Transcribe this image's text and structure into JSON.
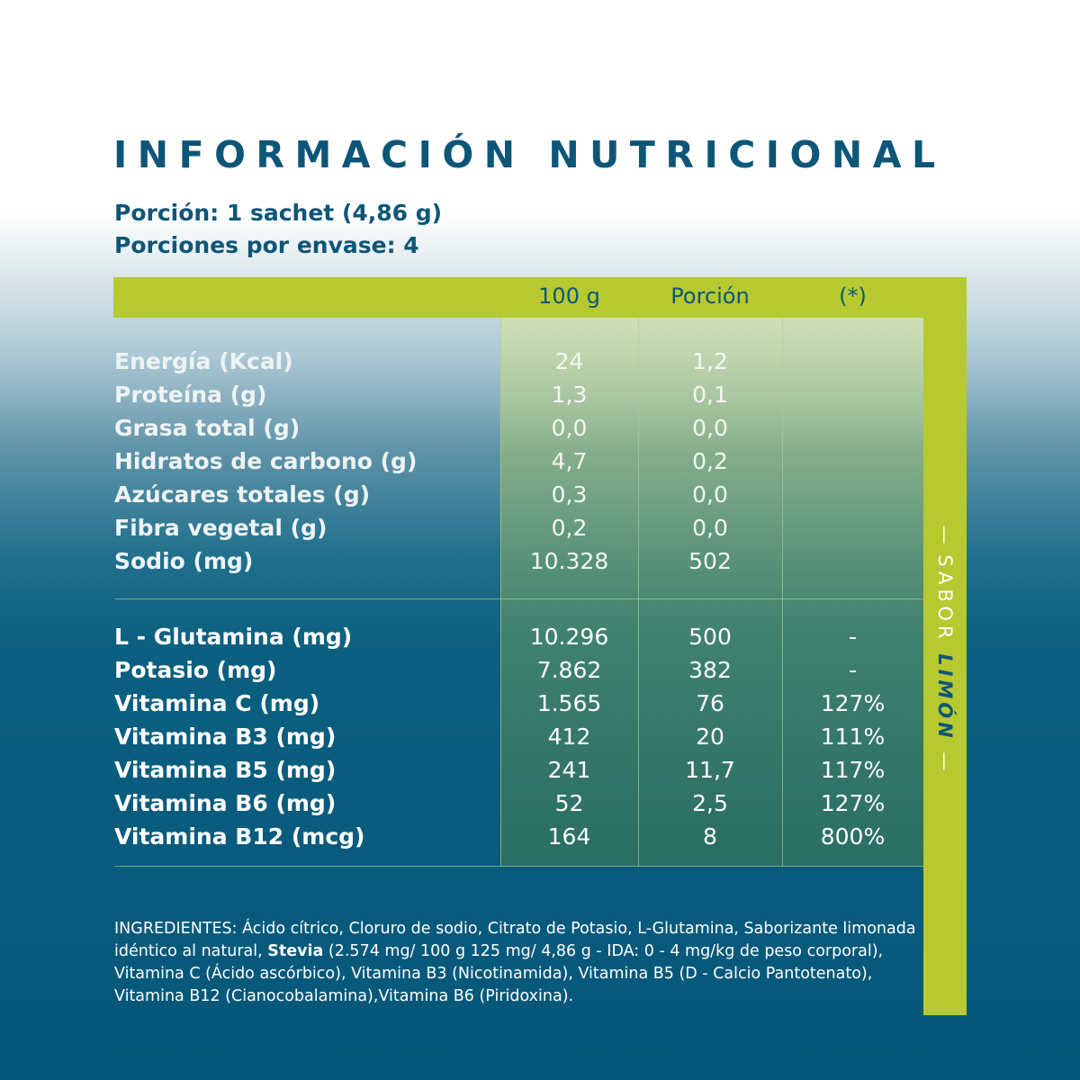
{
  "title": "INFORMACIÓN NUTRICIONAL",
  "serving": {
    "portion": "Porción: 1 sachet (4,86 g)",
    "servings_per_container": "Porciones por envase: 4"
  },
  "table": {
    "headers": [
      "100 g",
      "Porción",
      "(*)"
    ],
    "section1": [
      {
        "label": "Energía (Kcal)",
        "per100": "24",
        "portion": "1,2",
        "pct": ""
      },
      {
        "label": "Proteína (g)",
        "per100": "1,3",
        "portion": "0,1",
        "pct": ""
      },
      {
        "label": "Grasa total (g)",
        "per100": "0,0",
        "portion": "0,0",
        "pct": ""
      },
      {
        "label": "Hidratos de carbono (g)",
        "per100": "4,7",
        "portion": "0,2",
        "pct": ""
      },
      {
        "label": "Azúcares totales (g)",
        "per100": "0,3",
        "portion": "0,0",
        "pct": ""
      },
      {
        "label": "Fibra vegetal (g)",
        "per100": "0,2",
        "portion": "0,0",
        "pct": ""
      },
      {
        "label": "Sodio (mg)",
        "per100": "10.328",
        "portion": "502",
        "pct": ""
      }
    ],
    "section2": [
      {
        "label": "L - Glutamina (mg)",
        "per100": "10.296",
        "portion": "500",
        "pct": "-"
      },
      {
        "label": "Potasio (mg)",
        "per100": "7.862",
        "portion": "382",
        "pct": "-"
      },
      {
        "label": "Vitamina C (mg)",
        "per100": "1.565",
        "portion": "76",
        "pct": "127%"
      },
      {
        "label": "Vitamina B3 (mg)",
        "per100": "412",
        "portion": "20",
        "pct": "111%"
      },
      {
        "label": "Vitamina B5 (mg)",
        "per100": "241",
        "portion": "11,7",
        "pct": "117%"
      },
      {
        "label": "Vitamina B6 (mg)",
        "per100": "52",
        "portion": "2,5",
        "pct": "127%"
      },
      {
        "label": "Vitamina B12 (mcg)",
        "per100": "164",
        "portion": "8",
        "pct": "800%"
      }
    ]
  },
  "ingredients": {
    "before": "INGREDIENTES: Ácido cítrico, Cloruro de sodio, Citrato de Potasio, L-Glutamina, Saborizante limonada idéntico al natural, ",
    "bold": "Stevia",
    "after": " (2.574 mg/ 100 g 125 mg/ 4,86 g - IDA: 0 - 4 mg/kg de peso corporal), Vitamina C (Ácido ascórbico), Vitamina B3 (Nicotinamida), Vitamina B5 (D - Calcio Pantotenato), Vitamina B12 (Cianocobalamina),Vitamina B6 (Piridoxina)."
  },
  "flavor": {
    "dash": "—",
    "prefix": "SABOR",
    "name": "LIMÓN"
  },
  "colors": {
    "lime": "#b6c931",
    "navy": "#0d5677",
    "deep_blue": "#055779"
  }
}
